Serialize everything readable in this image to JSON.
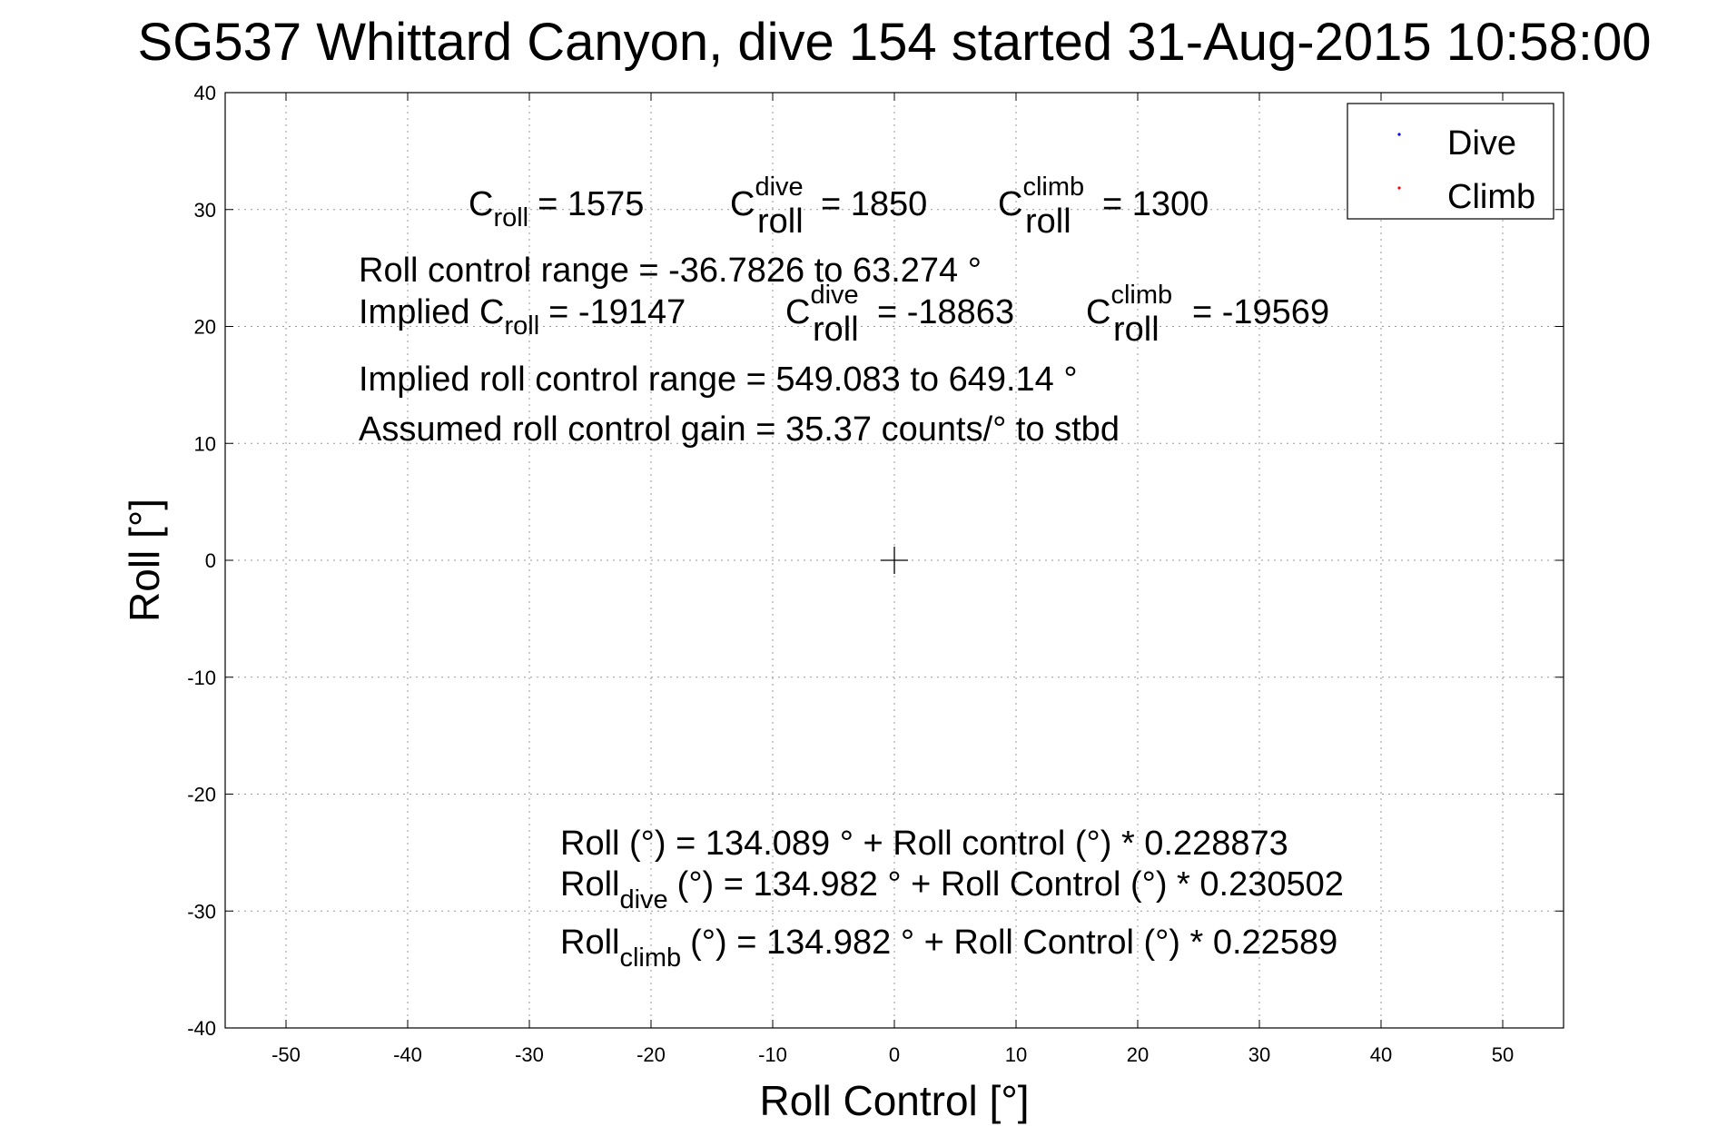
{
  "chart_data": {
    "type": "scatter",
    "title": "SG537 Whittard Canyon, dive 154 started 31-Aug-2015 10:58:00",
    "xlabel": "Roll Control [°]",
    "ylabel": "Roll [°]",
    "xlim": [
      -55,
      55
    ],
    "ylim": [
      -40,
      40
    ],
    "xticks": [
      -50,
      -40,
      -30,
      -20,
      -10,
      0,
      10,
      20,
      30,
      40,
      50
    ],
    "yticks": [
      -40,
      -30,
      -20,
      -10,
      0,
      10,
      20,
      30,
      40
    ],
    "grid": true,
    "legend_position": "top-right",
    "series": [
      {
        "name": "Dive",
        "color": "#0000ff",
        "points": []
      },
      {
        "name": "Climb",
        "color": "#ff0000",
        "points": []
      }
    ],
    "center_marker": {
      "x": 0,
      "y": 0
    },
    "annotations": {
      "c_roll": {
        "pre": "C",
        "sub": "roll",
        "post": "= 1575"
      },
      "c_roll_dive": {
        "pre": "C",
        "sup": "dive",
        "sub": "roll",
        "post": "= 1850"
      },
      "c_roll_climb": {
        "pre": "C",
        "sup": "climb",
        "sub": "roll",
        "post": "= 1300"
      },
      "roll_control_range": "Roll control range = -36.7826 to 63.274 °",
      "implied_c_roll": {
        "pre": "Implied C",
        "sub": "roll",
        "post": "= -19147"
      },
      "implied_c_roll_dive": {
        "pre": "C",
        "sup": "dive",
        "sub": "roll",
        "post": "= -18863"
      },
      "implied_c_roll_climb": {
        "pre": "C",
        "sup": "climb",
        "sub": "roll",
        "post": "= -19569"
      },
      "implied_range": "Implied roll control range = 549.083 to 649.14 °",
      "assumed_gain": "Assumed roll control gain = 35.37 counts/° to stbd",
      "fit_all": "Roll (°) = 134.089 ° + Roll control (°) * 0.228873",
      "fit_dive": {
        "pre": "Roll",
        "sub": "dive",
        "post": "(°) = 134.982 ° + Roll Control (°) * 0.230502"
      },
      "fit_climb": {
        "pre": "Roll",
        "sub": "climb",
        "post": "(°) = 134.982 ° + Roll Control (°) * 0.22589"
      }
    }
  }
}
